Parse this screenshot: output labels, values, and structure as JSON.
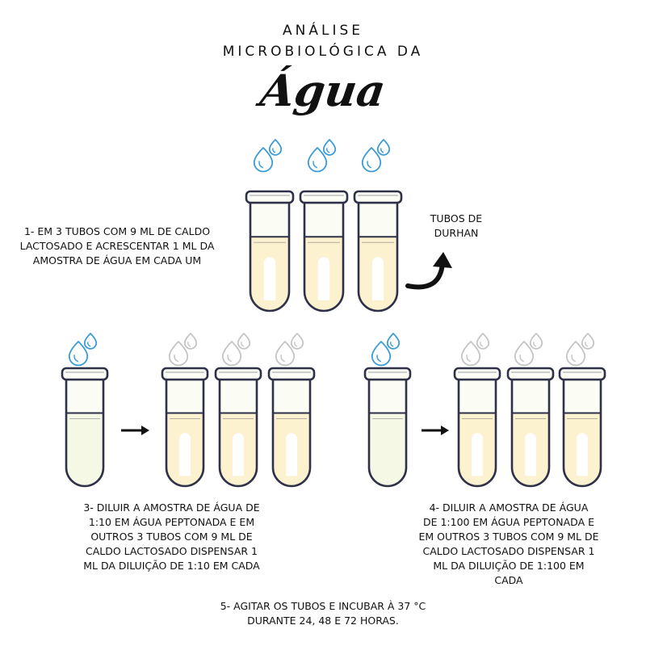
{
  "title": {
    "line1": "ANÁLISE",
    "line2": "MICROBIOLÓGICA DA",
    "script": "Água"
  },
  "steps": {
    "step1": [
      "1- EM 3 TUBOS COM 9 ML DE CALDO",
      "LACTOSADO E ACRESCENTAR 1 ML DA",
      "AMOSTRA DE ÁGUA EM CADA UM"
    ],
    "durhan": [
      "TUBOS DE",
      "DURHAN"
    ],
    "step3": [
      "3- DILUIR A AMOSTRA DE ÁGUA DE",
      "1:10 EM ÁGUA PEPTONADA E EM",
      "OUTROS 3 TUBOS COM 9 ML DE",
      "CALDO LACTOSADO DISPENSAR 1",
      "ML DA DILUIÇÃO DE 1:10 EM CADA"
    ],
    "step4": [
      "4-  DILUIR A AMOSTRA DE ÁGUA",
      "DE 1:100 EM ÁGUA PEPTONADA E",
      "EM OUTROS 3 TUBOS COM 9 ML DE",
      "CALDO LACTOSADO DISPENSAR 1",
      "ML DA DILUIÇÃO DE 1:100 EM",
      "CADA"
    ],
    "step5": [
      "5- AGITAR OS TUBOS E INCUBAR À 37 °C",
      "DURANTE 24, 48 E 72 HORAS."
    ]
  },
  "colors": {
    "outline": "#2e3148",
    "drop_blue": "#3a9bd5",
    "drop_gray": "#c4c4c4",
    "lactose_broth": "#fdf2cf",
    "peptone_water": "#f6f8e6",
    "glass": "#fbfcf4",
    "arrow": "#111111"
  },
  "icons": {
    "drop": "water-drop-icon",
    "arrow": "right-arrow-icon",
    "curved_arrow": "curved-arrow-icon"
  }
}
